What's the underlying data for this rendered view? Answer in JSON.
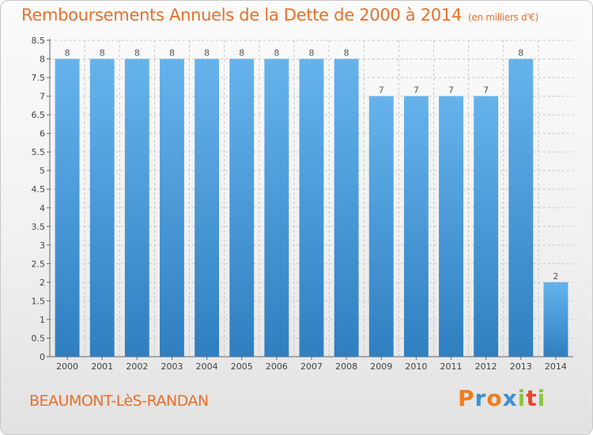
{
  "title": "Remboursements Annuels de la Dette de 2000 à 2014",
  "subtitle": "(en milliers d'€)",
  "place_name": "BEAUMONT-LèS-RANDAN",
  "logo": {
    "letters": [
      "P",
      "r",
      "o",
      "x",
      "i",
      "t",
      "i"
    ],
    "colors": [
      "#f07d1c",
      "#3d8fd6",
      "#f07d1c",
      "#3d8fd6",
      "#8cc63f",
      "#e8442e",
      "#8cc63f"
    ]
  },
  "colors": {
    "bar_light": "#66b3ec",
    "bar_dark": "#2f7fc1",
    "accent": "#e8702a",
    "grid": "#c6c6c6"
  },
  "chart_data": {
    "type": "bar",
    "categories": [
      "2000",
      "2001",
      "2002",
      "2003",
      "2004",
      "2005",
      "2006",
      "2007",
      "2008",
      "2009",
      "2010",
      "2011",
      "2012",
      "2013",
      "2014"
    ],
    "values": [
      8,
      8,
      8,
      8,
      8,
      8,
      8,
      8,
      8,
      7,
      7,
      7,
      7,
      8,
      2
    ],
    "data_labels": [
      "8",
      "8",
      "8",
      "8",
      "8",
      "8",
      "8",
      "8",
      "8",
      "7",
      "7",
      "7",
      "7",
      "8",
      "2"
    ],
    "ylim": [
      0,
      8.5
    ],
    "yticks": [
      0,
      0.5,
      1,
      1.5,
      2,
      2.5,
      3,
      3.5,
      4,
      4.5,
      5,
      5.5,
      6,
      6.5,
      7,
      7.5,
      8,
      8.5
    ],
    "ytick_labels": [
      "0",
      "0.5",
      "1",
      "1.5",
      "2",
      "2.5",
      "3",
      "3.5",
      "4",
      "4.5",
      "5",
      "5.5",
      "6",
      "6.5",
      "7",
      "7.5",
      "8",
      "8.5"
    ],
    "grid": true,
    "xlabel": "",
    "ylabel": ""
  }
}
